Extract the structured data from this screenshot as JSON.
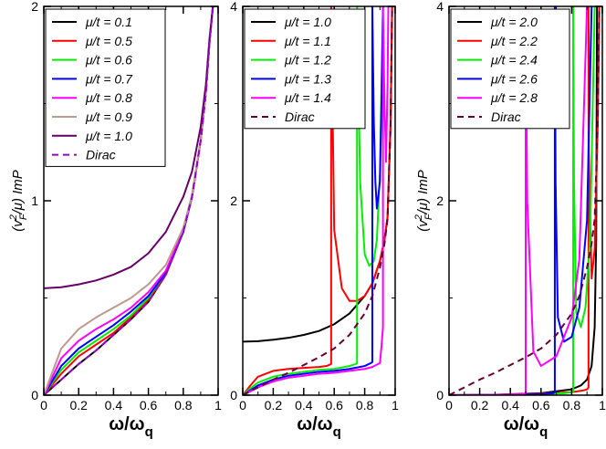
{
  "chart_data": [
    {
      "type": "line",
      "panel": "left",
      "xlabel": "ω/ω_q",
      "ylabel": "(v_F²/μ) ImP",
      "xlim": [
        0,
        1
      ],
      "ylim": [
        0,
        2
      ],
      "xticks": [
        "0",
        "0.2",
        "0.4",
        "0.6",
        "0.8",
        "1"
      ],
      "yticks": [
        "0",
        "1",
        "2"
      ],
      "legend_position": "top-left",
      "series": [
        {
          "name": "μ/t = 0.1",
          "color": "#000000",
          "dashed": false,
          "x": [
            0,
            0.1,
            0.2,
            0.3,
            0.4,
            0.5,
            0.6,
            0.7,
            0.8,
            0.85,
            0.9,
            0.93,
            0.95,
            0.97
          ],
          "y": [
            0,
            0.08,
            0.16,
            0.23,
            0.31,
            0.39,
            0.48,
            0.62,
            0.84,
            1.02,
            1.31,
            1.56,
            1.81,
            2.0
          ]
        },
        {
          "name": "μ/t = 0.5",
          "color": "#ff0000",
          "dashed": false,
          "x": [
            0,
            0.1,
            0.2,
            0.3,
            0.4,
            0.5,
            0.6,
            0.7,
            0.8,
            0.85,
            0.9,
            0.93,
            0.95,
            0.97
          ],
          "y": [
            0,
            0.11,
            0.2,
            0.26,
            0.32,
            0.4,
            0.49,
            0.62,
            0.84,
            1.02,
            1.31,
            1.56,
            1.81,
            2.0
          ]
        },
        {
          "name": "μ/t = 0.6",
          "color": "#00ee00",
          "dashed": false,
          "x": [
            0,
            0.1,
            0.2,
            0.3,
            0.4,
            0.5,
            0.6,
            0.7,
            0.8,
            0.85,
            0.9,
            0.93,
            0.95,
            0.97
          ],
          "y": [
            0,
            0.13,
            0.22,
            0.28,
            0.34,
            0.41,
            0.5,
            0.63,
            0.84,
            1.02,
            1.31,
            1.56,
            1.81,
            2.0
          ]
        },
        {
          "name": "μ/t = 0.7",
          "color": "#0000ff",
          "dashed": false,
          "x": [
            0,
            0.1,
            0.2,
            0.3,
            0.4,
            0.5,
            0.6,
            0.7,
            0.8,
            0.85,
            0.9,
            0.93,
            0.95,
            0.97
          ],
          "y": [
            0,
            0.15,
            0.24,
            0.3,
            0.36,
            0.43,
            0.51,
            0.63,
            0.84,
            1.02,
            1.31,
            1.56,
            1.81,
            2.0
          ]
        },
        {
          "name": "μ/t = 0.8",
          "color": "#ff00ff",
          "dashed": false,
          "x": [
            0,
            0.1,
            0.2,
            0.3,
            0.4,
            0.5,
            0.6,
            0.7,
            0.8,
            0.85,
            0.9,
            0.93,
            0.95,
            0.97
          ],
          "y": [
            0,
            0.19,
            0.28,
            0.34,
            0.39,
            0.45,
            0.53,
            0.64,
            0.85,
            1.02,
            1.31,
            1.56,
            1.81,
            2.0
          ]
        },
        {
          "name": "μ/t = 0.9",
          "color": "#bc9a8f",
          "dashed": false,
          "x": [
            0,
            0.1,
            0.2,
            0.3,
            0.4,
            0.5,
            0.6,
            0.7,
            0.8,
            0.85,
            0.9,
            0.93,
            0.95,
            0.97
          ],
          "y": [
            0,
            0.24,
            0.34,
            0.4,
            0.45,
            0.5,
            0.57,
            0.67,
            0.86,
            1.03,
            1.31,
            1.56,
            1.81,
            2.0
          ]
        },
        {
          "name": "μ/t = 1.0",
          "color": "#660066",
          "dashed": false,
          "x": [
            0,
            0.1,
            0.2,
            0.3,
            0.4,
            0.5,
            0.6,
            0.7,
            0.8,
            0.85,
            0.9,
            0.93,
            0.95,
            0.97
          ],
          "y": [
            0.55,
            0.555,
            0.57,
            0.59,
            0.62,
            0.66,
            0.73,
            0.84,
            1.02,
            1.15,
            1.38,
            1.6,
            1.83,
            2.0
          ]
        },
        {
          "name": "Dirac",
          "color": "#9900cc",
          "dashed": true,
          "x": [
            0,
            0.1,
            0.2,
            0.3,
            0.4,
            0.5,
            0.6,
            0.7,
            0.8,
            0.85,
            0.9,
            0.93,
            0.95,
            0.97
          ],
          "y": [
            0,
            0.08,
            0.16,
            0.23,
            0.31,
            0.39,
            0.48,
            0.62,
            0.84,
            1.02,
            1.31,
            1.56,
            1.81,
            2.0
          ]
        }
      ]
    },
    {
      "type": "line",
      "panel": "middle",
      "xlabel": "ω/ω_q",
      "ylabel": "",
      "xlim": [
        0,
        1
      ],
      "ylim": [
        0,
        4
      ],
      "xticks": [
        "0",
        "0.2",
        "0.4",
        "0.6",
        "0.8",
        "1"
      ],
      "yticks": [
        "0",
        "2",
        "4"
      ],
      "legend_position": "top-left",
      "series": [
        {
          "name": "μ/t = 1.0",
          "color": "#000000",
          "dashed": false,
          "x": [
            0,
            0.1,
            0.2,
            0.3,
            0.4,
            0.5,
            0.6,
            0.7,
            0.8,
            0.85,
            0.9,
            0.93,
            0.95,
            0.97,
            0.98
          ],
          "y": [
            0.55,
            0.555,
            0.57,
            0.59,
            0.62,
            0.66,
            0.73,
            0.84,
            1.02,
            1.15,
            1.38,
            1.6,
            1.83,
            2.8,
            4.0
          ]
        },
        {
          "name": "μ/t = 1.1",
          "color": "#ff0000",
          "dashed": false,
          "x": [
            0,
            0.05,
            0.1,
            0.2,
            0.3,
            0.4,
            0.5,
            0.55,
            0.58,
            0.58,
            0.6,
            0.65,
            0.7,
            0.75,
            0.8,
            0.85,
            0.9,
            0.93,
            0.95,
            0.97,
            0.98
          ],
          "y": [
            0,
            0.1,
            0.19,
            0.25,
            0.27,
            0.28,
            0.29,
            0.3,
            0.32,
            4.0,
            1.7,
            1.1,
            0.97,
            0.97,
            1.02,
            1.15,
            1.38,
            1.6,
            1.83,
            2.8,
            4.0
          ]
        },
        {
          "name": "μ/t = 1.2",
          "color": "#00ee00",
          "dashed": false,
          "x": [
            0,
            0.05,
            0.1,
            0.2,
            0.3,
            0.4,
            0.5,
            0.6,
            0.7,
            0.74,
            0.75,
            0.75,
            0.77,
            0.8,
            0.83,
            0.86,
            0.88,
            0.9,
            0.92
          ],
          "y": [
            0,
            0.07,
            0.13,
            0.19,
            0.22,
            0.24,
            0.26,
            0.27,
            0.3,
            0.32,
            0.33,
            4.0,
            2.2,
            1.45,
            1.33,
            1.38,
            1.6,
            2.3,
            4.0
          ]
        },
        {
          "name": "μ/t = 1.3",
          "color": "#0000ff",
          "dashed": false,
          "x": [
            0,
            0.05,
            0.1,
            0.2,
            0.3,
            0.4,
            0.5,
            0.6,
            0.7,
            0.8,
            0.84,
            0.85,
            0.85,
            0.86,
            0.87,
            0.88,
            0.9,
            0.91,
            0.92
          ],
          "y": [
            0,
            0.05,
            0.1,
            0.16,
            0.2,
            0.22,
            0.24,
            0.25,
            0.27,
            0.3,
            0.33,
            0.34,
            4.0,
            2.8,
            2.2,
            1.92,
            2.2,
            3.0,
            4.0
          ]
        },
        {
          "name": "μ/t = 1.4",
          "color": "#ff00ff",
          "dashed": false,
          "x": [
            0,
            0.05,
            0.1,
            0.2,
            0.3,
            0.4,
            0.5,
            0.6,
            0.7,
            0.8,
            0.85,
            0.9,
            0.91,
            0.92,
            0.92,
            0.93,
            0.94,
            0.95,
            0.955
          ],
          "y": [
            0,
            0.04,
            0.08,
            0.14,
            0.18,
            0.2,
            0.22,
            0.23,
            0.25,
            0.27,
            0.29,
            0.33,
            0.5,
            0.7,
            4.0,
            3.0,
            2.4,
            3.2,
            4.0
          ]
        },
        {
          "name": "Dirac",
          "color": "#660033",
          "dashed": true,
          "x": [
            0,
            0.1,
            0.2,
            0.3,
            0.4,
            0.5,
            0.6,
            0.7,
            0.8,
            0.85,
            0.9,
            0.93,
            0.95,
            0.97,
            0.98
          ],
          "y": [
            0,
            0.08,
            0.16,
            0.23,
            0.31,
            0.39,
            0.48,
            0.62,
            0.84,
            1.02,
            1.31,
            1.56,
            1.81,
            2.8,
            4.0
          ]
        }
      ]
    },
    {
      "type": "line",
      "panel": "right",
      "xlabel": "ω/ω_q",
      "ylabel": "(v_F²/μ) ImP",
      "xlim": [
        0,
        1
      ],
      "ylim": [
        0,
        4
      ],
      "xticks": [
        "0",
        "0.2",
        "0.4",
        "0.6",
        "0.8",
        "1"
      ],
      "yticks": [
        "0",
        "2",
        "4"
      ],
      "legend_position": "top-left",
      "series": [
        {
          "name": "μ/t = 2.0",
          "color": "#000000",
          "dashed": false,
          "x": [
            0,
            0.3,
            0.6,
            0.8,
            0.86,
            0.9,
            0.93,
            0.95,
            0.96,
            0.965
          ],
          "y": [
            0,
            0.005,
            0.02,
            0.06,
            0.1,
            0.16,
            0.3,
            0.7,
            1.6,
            4.0
          ]
        },
        {
          "name": "μ/t = 2.2",
          "color": "#ff0000",
          "dashed": false,
          "x": [
            0,
            0.3,
            0.6,
            0.8,
            0.88,
            0.9,
            0.91,
            0.91,
            0.912,
            0.93,
            0.95,
            0.97,
            0.98
          ],
          "y": [
            0,
            0.004,
            0.015,
            0.03,
            0.05,
            0.06,
            0.08,
            4.0,
            2.5,
            1.2,
            1.5,
            2.8,
            4.0
          ]
        },
        {
          "name": "μ/t = 2.4",
          "color": "#00ee00",
          "dashed": false,
          "x": [
            0,
            0.3,
            0.6,
            0.75,
            0.8,
            0.81,
            0.81,
            0.815,
            0.83,
            0.86,
            0.89,
            0.92,
            0.95
          ],
          "y": [
            0,
            0.003,
            0.01,
            0.02,
            0.03,
            0.04,
            4.0,
            2.2,
            0.85,
            0.7,
            0.9,
            1.6,
            4.0
          ]
        },
        {
          "name": "μ/t = 2.6",
          "color": "#0000ff",
          "dashed": false,
          "x": [
            0,
            0.3,
            0.6,
            0.68,
            0.69,
            0.69,
            0.695,
            0.71,
            0.75,
            0.8,
            0.85,
            0.9,
            0.93
          ],
          "y": [
            0,
            0.003,
            0.01,
            0.02,
            0.03,
            4.0,
            2.2,
            0.8,
            0.55,
            0.6,
            0.9,
            1.8,
            4.0
          ]
        },
        {
          "name": "μ/t = 2.8",
          "color": "#ff00ff",
          "dashed": false,
          "x": [
            0,
            0.3,
            0.48,
            0.5,
            0.5,
            0.51,
            0.55,
            0.6,
            0.7,
            0.8,
            0.85,
            0.9
          ],
          "y": [
            0,
            0.003,
            0.01,
            0.02,
            4.0,
            2.0,
            0.45,
            0.3,
            0.4,
            0.8,
            1.4,
            4.0
          ]
        },
        {
          "name": "Dirac",
          "color": "#660033",
          "dashed": true,
          "x": [
            0,
            0.1,
            0.2,
            0.3,
            0.4,
            0.5,
            0.6,
            0.7,
            0.8,
            0.85,
            0.9,
            0.93,
            0.95,
            0.97,
            0.98
          ],
          "y": [
            0,
            0.08,
            0.16,
            0.23,
            0.31,
            0.39,
            0.48,
            0.62,
            0.84,
            1.02,
            1.31,
            1.56,
            1.81,
            2.8,
            4.0
          ]
        }
      ]
    }
  ]
}
